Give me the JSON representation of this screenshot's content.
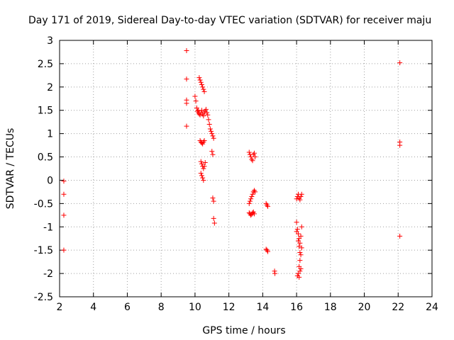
{
  "chart_data": {
    "type": "scatter",
    "title": "Day 171 of 2019, Sidereal Day-to-day VTEC variation (SDTVAR) for receiver maju",
    "xlabel": "GPS time / hours",
    "ylabel": "SDTVAR / TECUs",
    "xlim": [
      2,
      24
    ],
    "ylim": [
      -2.5,
      3
    ],
    "xticks": [
      "2",
      "4",
      "6",
      "8",
      "10",
      "12",
      "14",
      "16",
      "18",
      "20",
      "22",
      "24"
    ],
    "yticks": [
      "3",
      "2.5",
      "2",
      "1.5",
      "1",
      "0.5",
      "0",
      "-0.5",
      "-1",
      "-1.5",
      "-2",
      "-2.5"
    ],
    "grid": true,
    "marker": "+",
    "color": "#ff0000",
    "series": [
      {
        "name": "SDTVAR",
        "points": [
          [
            2.25,
            -0.02
          ],
          [
            2.25,
            -0.3
          ],
          [
            2.25,
            -0.75
          ],
          [
            2.25,
            -1.5
          ],
          [
            9.5,
            2.78
          ],
          [
            9.5,
            2.17
          ],
          [
            9.5,
            1.72
          ],
          [
            9.5,
            1.65
          ],
          [
            9.5,
            1.16
          ],
          [
            10.0,
            1.8
          ],
          [
            10.05,
            1.7
          ],
          [
            10.1,
            1.55
          ],
          [
            10.2,
            1.5
          ],
          [
            10.25,
            2.2
          ],
          [
            10.3,
            2.15
          ],
          [
            10.35,
            2.1
          ],
          [
            10.4,
            2.05
          ],
          [
            10.45,
            2.0
          ],
          [
            10.5,
            1.95
          ],
          [
            10.55,
            1.9
          ],
          [
            10.15,
            1.48
          ],
          [
            10.2,
            1.45
          ],
          [
            10.25,
            1.42
          ],
          [
            10.3,
            1.4
          ],
          [
            10.35,
            1.45
          ],
          [
            10.4,
            1.5
          ],
          [
            10.45,
            1.42
          ],
          [
            10.5,
            1.38
          ],
          [
            10.55,
            1.45
          ],
          [
            10.6,
            1.48
          ],
          [
            10.65,
            1.52
          ],
          [
            10.7,
            1.45
          ],
          [
            10.75,
            1.4
          ],
          [
            10.8,
            1.3
          ],
          [
            10.85,
            1.2
          ],
          [
            10.9,
            1.1
          ],
          [
            10.95,
            1.05
          ],
          [
            11.0,
            1.0
          ],
          [
            11.05,
            0.95
          ],
          [
            11.1,
            0.9
          ],
          [
            10.3,
            0.85
          ],
          [
            10.35,
            0.82
          ],
          [
            10.4,
            0.8
          ],
          [
            10.45,
            0.78
          ],
          [
            10.5,
            0.82
          ],
          [
            10.55,
            0.85
          ],
          [
            10.35,
            0.4
          ],
          [
            10.4,
            0.35
          ],
          [
            10.45,
            0.3
          ],
          [
            10.5,
            0.25
          ],
          [
            10.35,
            0.15
          ],
          [
            10.4,
            0.1
          ],
          [
            10.45,
            0.05
          ],
          [
            10.5,
            0.0
          ],
          [
            10.55,
            0.3
          ],
          [
            10.6,
            0.38
          ],
          [
            11.0,
            0.62
          ],
          [
            11.05,
            0.55
          ],
          [
            11.05,
            -0.38
          ],
          [
            11.1,
            -0.45
          ],
          [
            11.1,
            -0.82
          ],
          [
            11.15,
            -0.92
          ],
          [
            13.2,
            0.6
          ],
          [
            13.25,
            0.55
          ],
          [
            13.3,
            0.5
          ],
          [
            13.35,
            0.45
          ],
          [
            13.4,
            0.42
          ],
          [
            13.45,
            0.55
          ],
          [
            13.5,
            0.58
          ],
          [
            13.55,
            0.5
          ],
          [
            13.2,
            -0.5
          ],
          [
            13.25,
            -0.45
          ],
          [
            13.3,
            -0.4
          ],
          [
            13.35,
            -0.35
          ],
          [
            13.4,
            -0.3
          ],
          [
            13.45,
            -0.25
          ],
          [
            13.5,
            -0.22
          ],
          [
            13.55,
            -0.25
          ],
          [
            13.2,
            -0.7
          ],
          [
            13.25,
            -0.72
          ],
          [
            13.3,
            -0.75
          ],
          [
            13.35,
            -0.73
          ],
          [
            13.4,
            -0.7
          ],
          [
            13.45,
            -0.68
          ],
          [
            13.5,
            -0.72
          ],
          [
            14.2,
            -0.5
          ],
          [
            14.25,
            -0.53
          ],
          [
            14.3,
            -0.56
          ],
          [
            14.2,
            -1.48
          ],
          [
            14.25,
            -1.5
          ],
          [
            14.3,
            -1.53
          ],
          [
            14.7,
            -1.95
          ],
          [
            14.72,
            -2.0
          ],
          [
            16.0,
            -0.4
          ],
          [
            16.05,
            -0.35
          ],
          [
            16.1,
            -0.3
          ],
          [
            16.15,
            -0.38
          ],
          [
            16.2,
            -0.42
          ],
          [
            16.25,
            -0.35
          ],
          [
            16.3,
            -0.3
          ],
          [
            16.0,
            -0.9
          ],
          [
            16.05,
            -1.05
          ],
          [
            16.1,
            -1.15
          ],
          [
            16.15,
            -1.25
          ],
          [
            16.2,
            -1.35
          ],
          [
            16.25,
            -1.2
          ],
          [
            16.1,
            -1.3
          ],
          [
            16.15,
            -1.42
          ],
          [
            16.2,
            -1.55
          ],
          [
            16.25,
            -1.6
          ],
          [
            16.3,
            -1.45
          ],
          [
            16.2,
            -1.72
          ],
          [
            16.15,
            -1.85
          ],
          [
            16.2,
            -1.95
          ],
          [
            16.1,
            -2.0
          ],
          [
            16.05,
            -2.05
          ],
          [
            16.15,
            -2.08
          ],
          [
            16.25,
            -1.9
          ],
          [
            16.0,
            -1.1
          ],
          [
            16.3,
            -1.0
          ],
          [
            22.1,
            2.52
          ],
          [
            22.1,
            0.82
          ],
          [
            22.1,
            0.75
          ],
          [
            22.1,
            -1.2
          ]
        ]
      }
    ]
  }
}
